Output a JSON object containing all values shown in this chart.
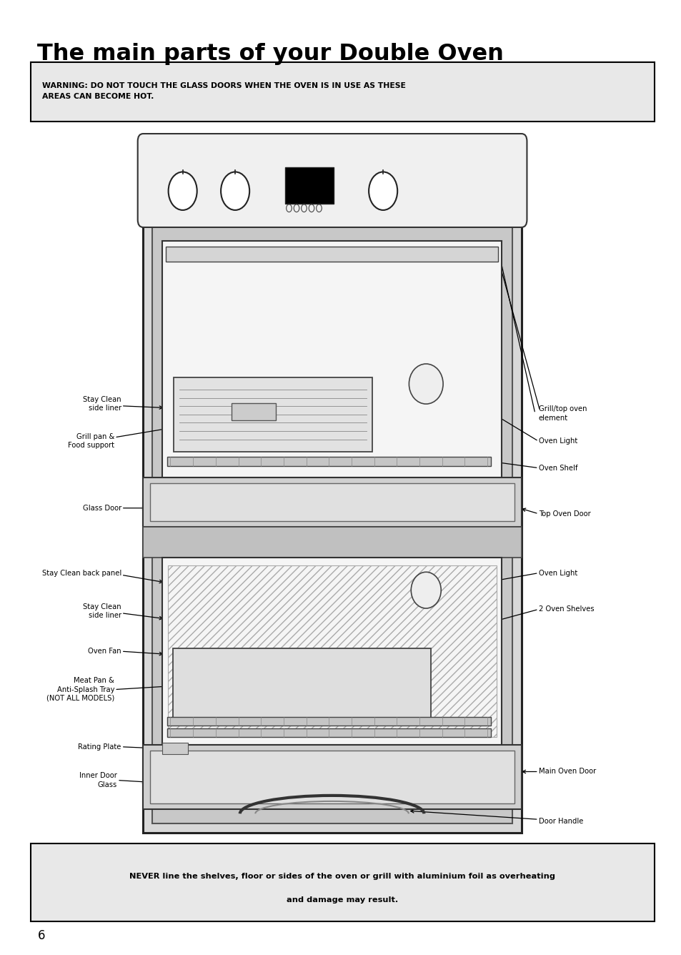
{
  "title": "The main parts of your Double Oven",
  "warning_text": "WARNING: DO NOT TOUCH THE GLASS DOORS WHEN THE OVEN IS IN USE AS THESE\nAREAS CAN BECOME HOT.",
  "bottom_warning_line1": "NEVER line the shelves, floor or sides of the oven or grill with aluminium foil as overheating",
  "bottom_warning_line2": "and damage may result.",
  "page_number": "6",
  "bg_color": "#ffffff"
}
